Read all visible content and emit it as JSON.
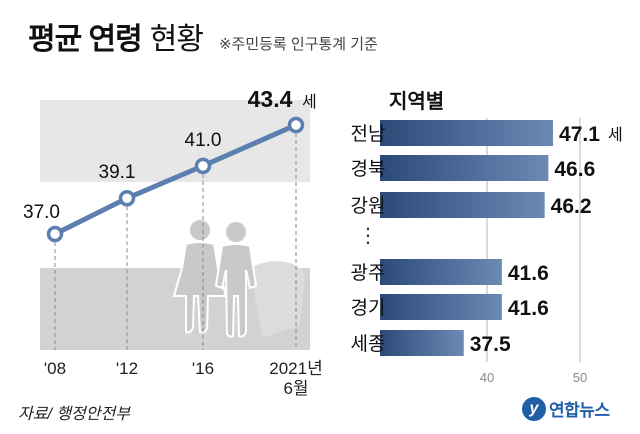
{
  "title": {
    "main": "평균 연령",
    "sub": "현황",
    "note": "※주민등록 인구통계 기준"
  },
  "source": "자료/ 행정안전부",
  "logo": {
    "mark": "y",
    "text": "연합뉴스"
  },
  "colors": {
    "line": "#5b7fae",
    "marker_fill": "#ffffff",
    "band_light": "#e7e7e7",
    "band_dark": "#d2d2d2",
    "bar_dark": "#2c4a78",
    "bar_light": "#6c89b6",
    "figure": "#c9c9c9",
    "shadow": "#dcdcdc",
    "logo": "#1f5fa8"
  },
  "chart_data": [
    {
      "type": "line",
      "x_labels": [
        "'08",
        "'12",
        "'16",
        "2021년\n6월"
      ],
      "values": [
        37.0,
        39.1,
        41.0,
        43.4
      ],
      "value_labels": [
        "37.0",
        "39.1",
        "41.0",
        "43.4"
      ],
      "unit": "세",
      "xlabel": "",
      "ylabel": "",
      "ylim": [
        35.5,
        45
      ],
      "grid": false
    },
    {
      "type": "bar",
      "orientation": "horizontal",
      "title": "지역별",
      "categories": [
        "전남",
        "경북",
        "강원",
        "광주",
        "경기",
        "세종"
      ],
      "values": [
        47.1,
        46.6,
        46.2,
        41.6,
        41.6,
        37.5
      ],
      "value_labels": [
        "47.1",
        "46.6",
        "46.2",
        "41.6",
        "41.6",
        "37.5"
      ],
      "unit": "세",
      "ellipsis": "⋮",
      "ticks": [
        "40",
        "50"
      ],
      "xlim": [
        30,
        50
      ],
      "grid": true
    }
  ]
}
